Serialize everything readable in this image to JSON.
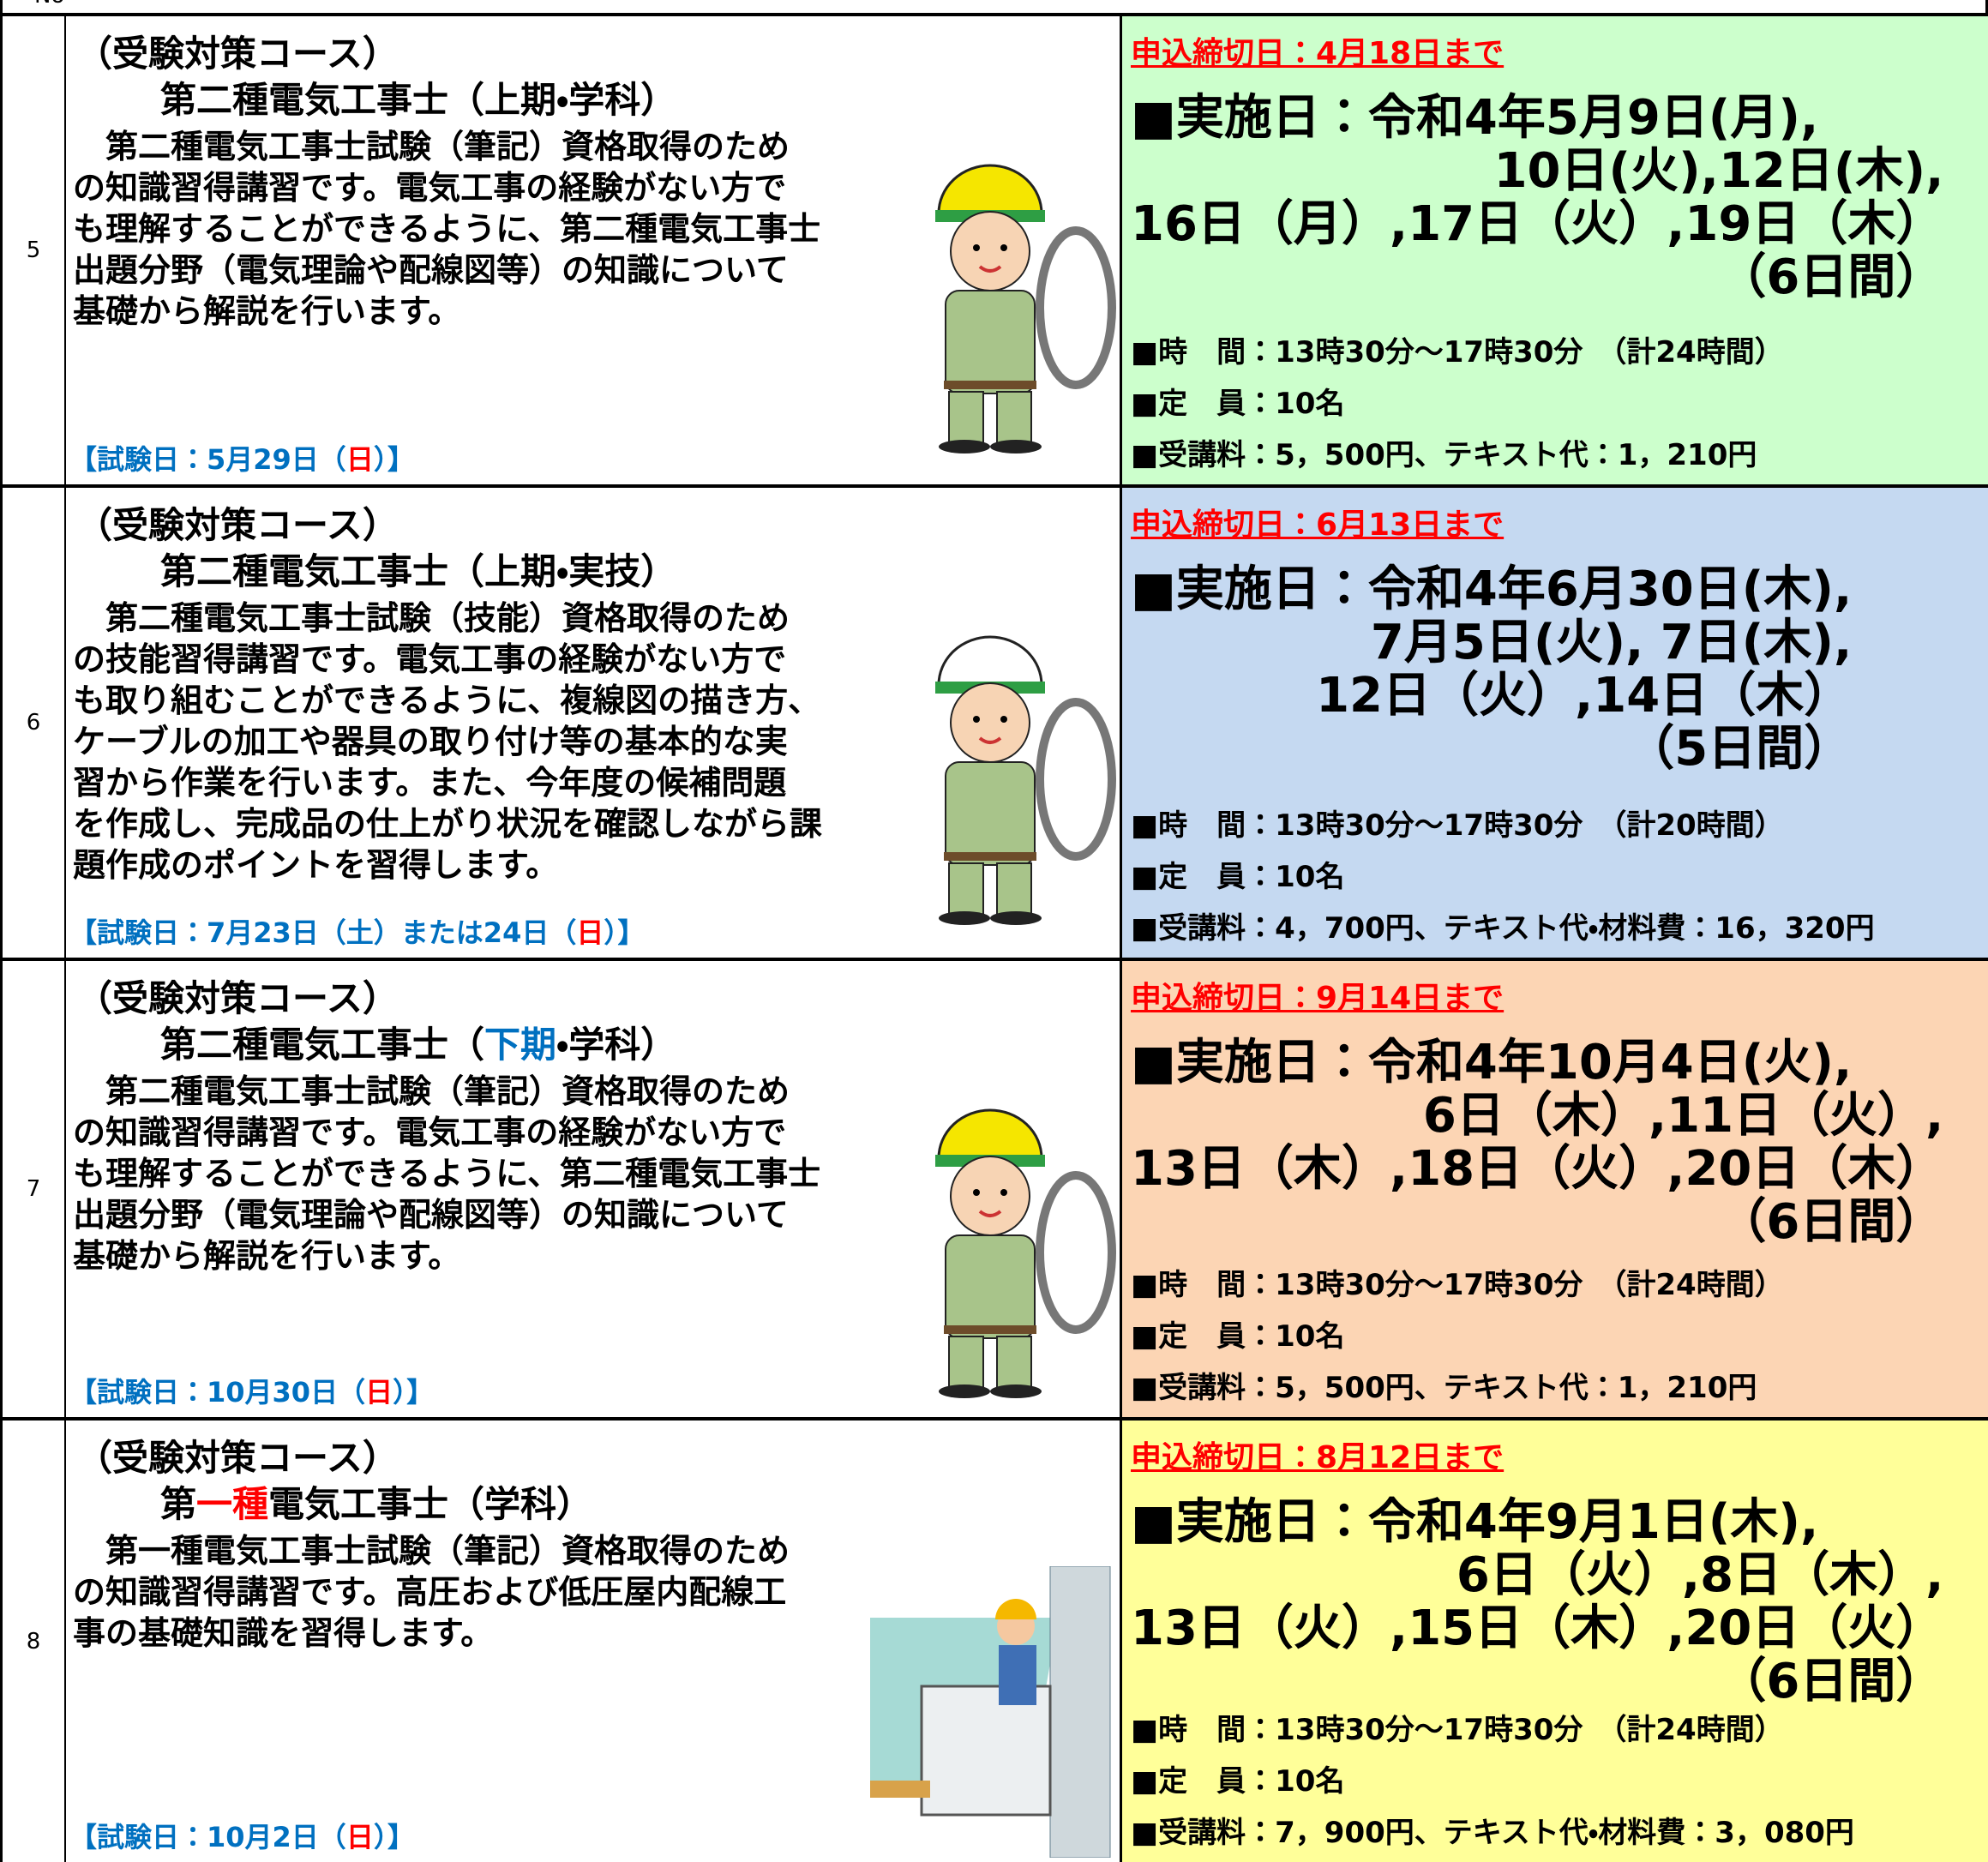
{
  "header": {
    "no": "No"
  },
  "rows": [
    {
      "no": "5",
      "course": "（受験対策コース）",
      "title": [
        {
          "text": "第二種電気工事士（上期・学科）"
        }
      ],
      "description": [
        "　第二種電気工事士試験（筆記）資格取得のため",
        "の知識習得講習です。電気工事の経験がない方で",
        "も理解することができるように、第二種電気工事士",
        "出題分野（電気理論や配線図等）の知識について",
        "基礎から解説を行います。"
      ],
      "exam": [
        {
          "text": "【試験日：5月29日（"
        },
        {
          "text": "日",
          "color": "#ff0000"
        },
        {
          "text": "）】"
        }
      ],
      "background": "#ccffcc",
      "deadline": "申込締切日：4月18日まで",
      "schedule": [
        "■実施日：令和4年5月9日(月),",
        "10日(火),12日(木),",
        "16日（月）,17日（火）,19日（木）",
        "（6日間）"
      ],
      "time": "■時　間：13時30分～17時30分　（計24時間）",
      "capacity": "■定　員：10名",
      "fee": "■受講料：5，500円、テキスト代：1，210円"
    },
    {
      "no": "6",
      "course": "（受験対策コース）",
      "title": [
        {
          "text": "第二種電気工事士（上期・実技）"
        }
      ],
      "description": [
        "　第二種電気工事士試験（技能）資格取得のため",
        "の技能習得講習です。電気工事の経験がない方で",
        "も取り組むことができるように、複線図の描き方、",
        "ケーブルの加工や器具の取り付け等の基本的な実",
        "習から作業を行います。また、今年度の候補問題",
        "を作成し、完成品の仕上がり状況を確認しながら課",
        "題作成のポイントを習得します。"
      ],
      "exam": [
        {
          "text": "【試験日：7月23日（土）または24日（"
        },
        {
          "text": "日",
          "color": "#ff0000"
        },
        {
          "text": "）】"
        }
      ],
      "background": "#c5d9f1",
      "deadline": "申込締切日：6月13日まで",
      "schedule": [
        "■実施日：令和4年6月30日(木),",
        "7月5日(火), 7日(木),",
        "12日（火）,14日（木）",
        "（5日間）"
      ],
      "time": "■時　間：13時30分～17時30分　（計20時間）",
      "capacity": "■定　員：10名",
      "fee": "■受講料：4，700円、テキスト代・材料費：16，320円"
    },
    {
      "no": "7",
      "course": "（受験対策コース）",
      "title": [
        {
          "text": "第二種電気工事士（"
        },
        {
          "text": "下期",
          "color": "#0070c0"
        },
        {
          "text": "・学科）"
        }
      ],
      "description": [
        "　第二種電気工事士試験（筆記）資格取得のため",
        "の知識習得講習です。電気工事の経験がない方で",
        "も理解することができるように、第二種電気工事士",
        "出題分野（電気理論や配線図等）の知識について",
        "基礎から解説を行います。"
      ],
      "exam": [
        {
          "text": "【試験日：10月30日（"
        },
        {
          "text": "日",
          "color": "#ff0000"
        },
        {
          "text": "）】"
        }
      ],
      "background": "#fcd5b4",
      "deadline": "申込締切日：9月14日まで",
      "schedule": [
        "■実施日：令和4年10月4日(火),",
        "6日（木）,11日（火）,",
        "13日（木）,18日（火）,20日（木）",
        "（6日間）"
      ],
      "time": "■時　間：13時30分～17時30分　（計24時間）",
      "capacity": "■定　員：10名",
      "fee": "■受講料：5，500円、テキスト代：1，210円"
    },
    {
      "no": "8",
      "course": "（受験対策コース）",
      "title": [
        {
          "text": "第"
        },
        {
          "text": "一種",
          "color": "#ff0000"
        },
        {
          "text": "電気工事士（学科）"
        }
      ],
      "description": [
        "　第一種電気工事士試験（筆記）資格取得のため",
        "の知識習得講習です。高圧および低圧屋内配線工",
        "事の基礎知識を習得します。"
      ],
      "exam": [
        {
          "text": "【試験日：10月2日（"
        },
        {
          "text": "日",
          "color": "#ff0000"
        },
        {
          "text": "）】"
        }
      ],
      "background": "#ffff99",
      "deadline": "申込締切日：8月12日まで",
      "schedule": [
        "■実施日：令和4年9月1日(木),",
        "6日（火）,8日（木）,",
        "13日（火）,15日（木）,20日（火）",
        "（6日間）"
      ],
      "time": "■時　間：13時30分～17時30分　（計24時間）",
      "capacity": "■定　員：10名",
      "fee": "■受講料：7，900円、テキスト代・材料費：3，080円"
    }
  ]
}
